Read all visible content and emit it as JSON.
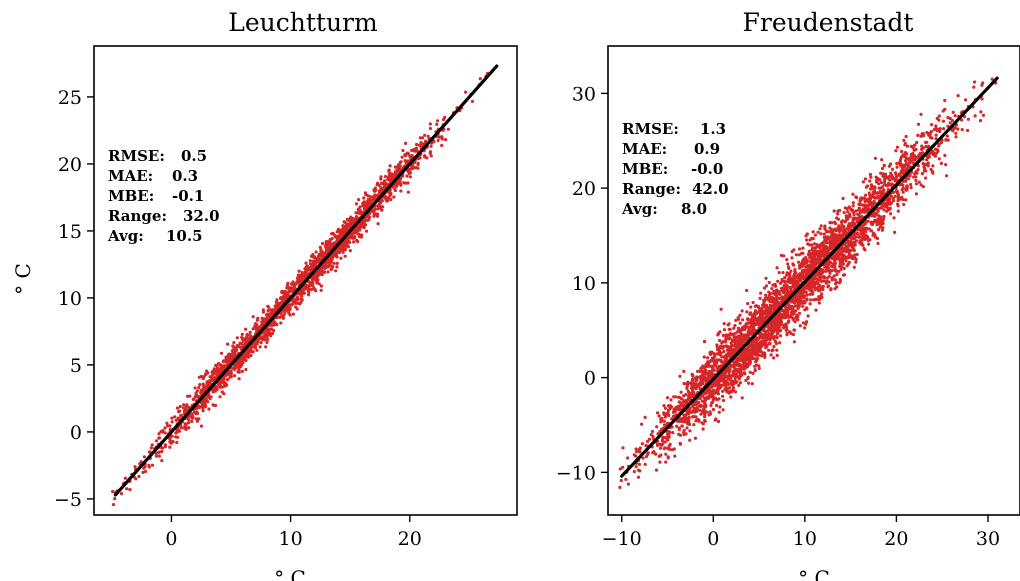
{
  "chart_data": [
    {
      "type": "scatter",
      "title": "Leuchtturm",
      "xlabel": "° C",
      "ylabel": "° C",
      "xlim": [
        -6.5,
        29
      ],
      "ylim": [
        -6.2,
        28.8
      ],
      "xticks": [
        0,
        10,
        20
      ],
      "yticks": [
        -5,
        0,
        5,
        10,
        15,
        20,
        25
      ],
      "fit_line": [
        [
          -4.7,
          -4.7
        ],
        [
          27.3,
          27.3
        ]
      ],
      "point_color": "#d62728",
      "line_color": "#000000",
      "stats": [
        {
          "label": "RMSE:",
          "value": "0.5"
        },
        {
          "label": "MAE:",
          "value": "0.3"
        },
        {
          "label": "MBE:",
          "value": "-0.1"
        },
        {
          "label": "Range:",
          "value": "32.0"
        },
        {
          "label": "Avg:",
          "value": "10.5"
        }
      ],
      "point_density": [
        {
          "x": -4.5,
          "y_spread": 0.4,
          "n": 12
        },
        {
          "x": -2.5,
          "y_spread": 0.5,
          "n": 30
        },
        {
          "x": -0.5,
          "y_spread": 0.55,
          "n": 60
        },
        {
          "x": 1.5,
          "y_spread": 0.6,
          "n": 120
        },
        {
          "x": 3.5,
          "y_spread": 0.6,
          "n": 200
        },
        {
          "x": 5.5,
          "y_spread": 0.6,
          "n": 260
        },
        {
          "x": 7.5,
          "y_spread": 0.55,
          "n": 220
        },
        {
          "x": 9.5,
          "y_spread": 0.55,
          "n": 200
        },
        {
          "x": 11.5,
          "y_spread": 0.6,
          "n": 230
        },
        {
          "x": 13.5,
          "y_spread": 0.6,
          "n": 260
        },
        {
          "x": 15.5,
          "y_spread": 0.6,
          "n": 260
        },
        {
          "x": 17.5,
          "y_spread": 0.6,
          "n": 200
        },
        {
          "x": 19.5,
          "y_spread": 0.6,
          "n": 130
        },
        {
          "x": 21.5,
          "y_spread": 0.5,
          "n": 60
        },
        {
          "x": 23.5,
          "y_spread": 0.5,
          "n": 20
        },
        {
          "x": 26.0,
          "y_spread": 0.4,
          "n": 6
        }
      ]
    },
    {
      "type": "scatter",
      "title": "Freudenstadt",
      "xlabel": "° C",
      "ylabel": "",
      "xlim": [
        -11.5,
        33.5
      ],
      "ylim": [
        -14.5,
        35
      ],
      "xticks": [
        -10,
        0,
        10,
        20,
        30
      ],
      "yticks": [
        -10,
        0,
        10,
        20,
        30
      ],
      "fit_line": [
        [
          -10.0,
          -10.4
        ],
        [
          31.0,
          31.6
        ]
      ],
      "point_color": "#d62728",
      "line_color": "#000000",
      "stats": [
        {
          "label": "RMSE:",
          "value": "1.3"
        },
        {
          "label": "MAE:",
          "value": "0.9"
        },
        {
          "label": "MBE:",
          "value": "-0.0"
        },
        {
          "label": "Range:",
          "value": "42.0"
        },
        {
          "label": "Avg:",
          "value": "8.0"
        }
      ],
      "point_density": [
        {
          "x": -10.0,
          "y_spread": 1.0,
          "n": 10
        },
        {
          "x": -7.5,
          "y_spread": 1.3,
          "n": 40
        },
        {
          "x": -5.0,
          "y_spread": 1.5,
          "n": 110
        },
        {
          "x": -2.5,
          "y_spread": 1.6,
          "n": 220
        },
        {
          "x": 0.0,
          "y_spread": 1.7,
          "n": 330
        },
        {
          "x": 2.5,
          "y_spread": 1.7,
          "n": 380
        },
        {
          "x": 5.0,
          "y_spread": 1.7,
          "n": 380
        },
        {
          "x": 7.5,
          "y_spread": 1.7,
          "n": 370
        },
        {
          "x": 10.0,
          "y_spread": 1.7,
          "n": 360
        },
        {
          "x": 12.5,
          "y_spread": 1.7,
          "n": 340
        },
        {
          "x": 15.0,
          "y_spread": 1.7,
          "n": 300
        },
        {
          "x": 17.5,
          "y_spread": 1.7,
          "n": 250
        },
        {
          "x": 20.0,
          "y_spread": 1.6,
          "n": 180
        },
        {
          "x": 22.5,
          "y_spread": 1.5,
          "n": 110
        },
        {
          "x": 25.0,
          "y_spread": 1.4,
          "n": 60
        },
        {
          "x": 27.5,
          "y_spread": 1.2,
          "n": 25
        },
        {
          "x": 30.0,
          "y_spread": 1.0,
          "n": 10
        }
      ]
    }
  ]
}
